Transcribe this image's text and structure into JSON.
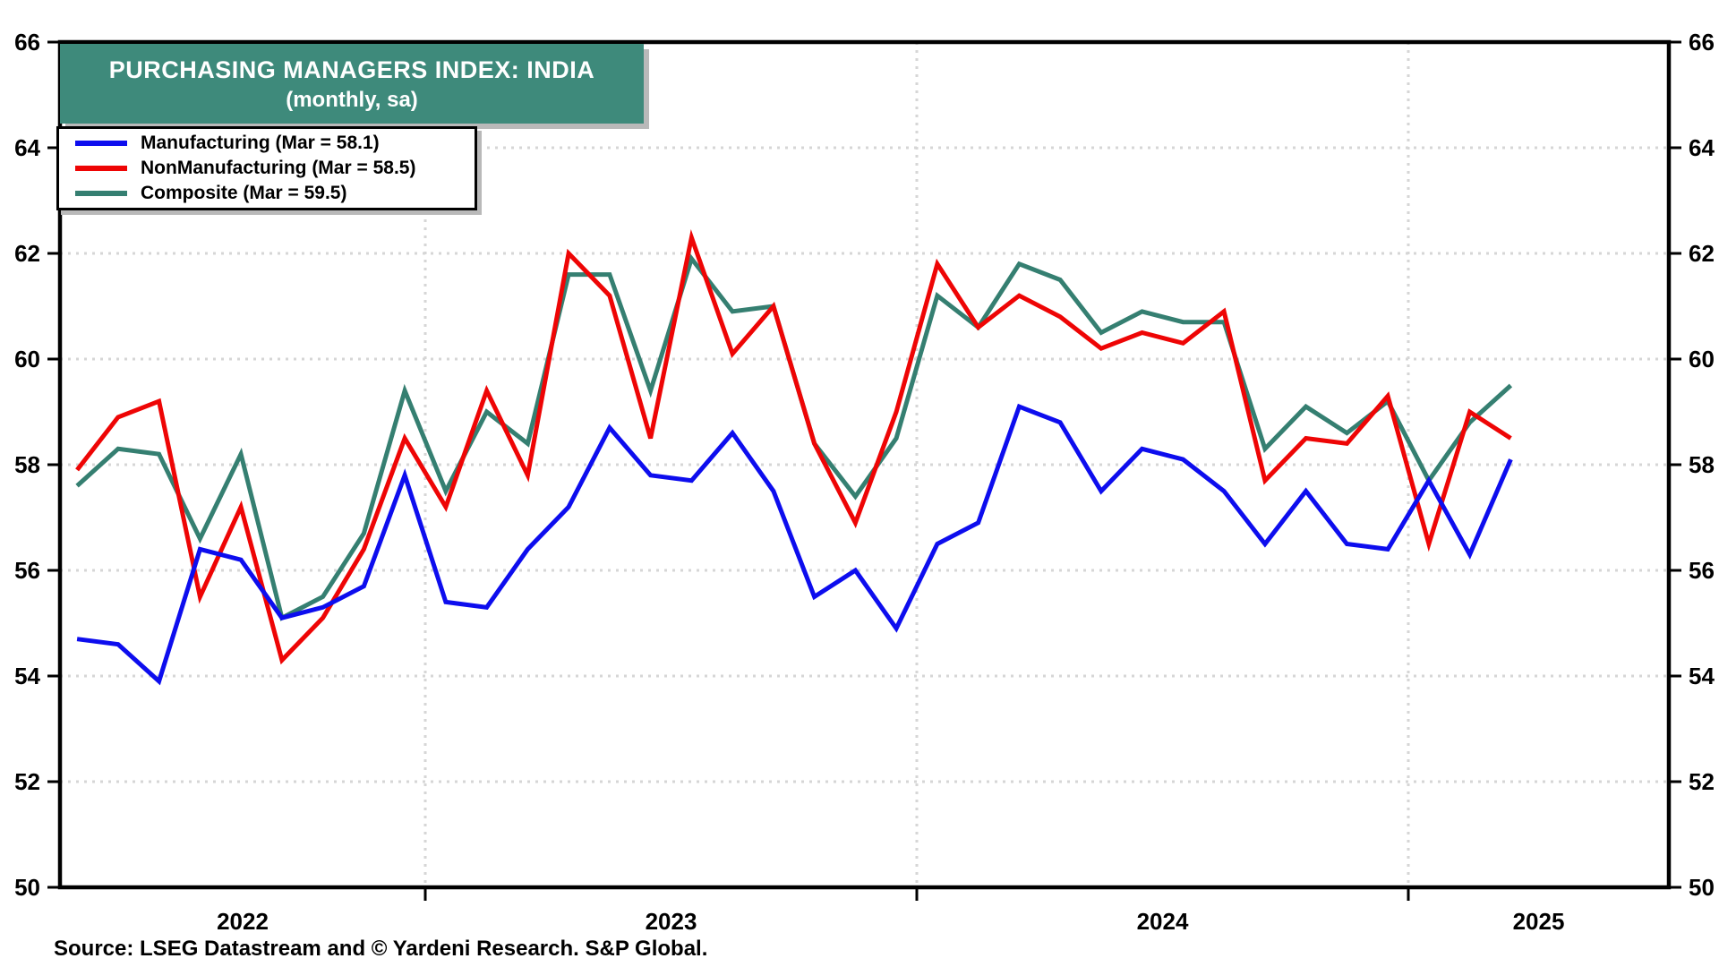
{
  "title": {
    "line1": "PURCHASING MANAGERS INDEX: INDIA",
    "line2": "(monthly, sa)"
  },
  "legend": {
    "items": [
      {
        "label": "Manufacturing (Mar = 58.1)"
      },
      {
        "label": "NonManufacturing (Mar = 58.5)"
      },
      {
        "label": "Composite (Mar = 59.5)"
      }
    ]
  },
  "source_note": "Source: LSEG Datastream and © Yardeni Research. S&P Global.",
  "colors": {
    "banner_background": "#3e8a7b",
    "manufacturing": "#0d0dee",
    "nonmanufacturing": "#ee0505",
    "composite": "#357f71",
    "gridline": "#d6d6d6",
    "axis": "#000000",
    "shadow": "#b9b9b9"
  },
  "chart_data": {
    "type": "line",
    "title": "PURCHASING MANAGERS INDEX: INDIA",
    "subtitle": "(monthly, sa)",
    "x": [
      "Apr 2022",
      "May 2022",
      "Jun 2022",
      "Jul 2022",
      "Aug 2022",
      "Sep 2022",
      "Oct 2022",
      "Nov 2022",
      "Dec 2022",
      "Jan 2023",
      "Feb 2023",
      "Mar 2023",
      "Apr 2023",
      "May 2023",
      "Jun 2023",
      "Jul 2023",
      "Aug 2023",
      "Sep 2023",
      "Oct 2023",
      "Nov 2023",
      "Dec 2023",
      "Jan 2024",
      "Feb 2024",
      "Mar 2024",
      "Apr 2024",
      "May 2024",
      "Jun 2024",
      "Jul 2024",
      "Aug 2024",
      "Sep 2024",
      "Oct 2024",
      "Nov 2024",
      "Dec 2024",
      "Jan 2025",
      "Feb 2025",
      "Mar 2025"
    ],
    "series": [
      {
        "name": "Manufacturing (Mar = 58.1)",
        "color": "#0d0dee",
        "values": [
          54.7,
          54.6,
          53.9,
          56.4,
          56.2,
          55.1,
          55.3,
          55.7,
          57.8,
          55.4,
          55.3,
          56.4,
          57.2,
          58.7,
          57.8,
          57.7,
          58.6,
          57.5,
          55.5,
          56.0,
          54.9,
          56.5,
          56.9,
          59.1,
          58.8,
          57.5,
          58.3,
          58.1,
          57.5,
          56.5,
          57.5,
          56.5,
          56.4,
          57.7,
          56.3,
          58.1
        ]
      },
      {
        "name": "NonManufacturing (Mar = 58.5)",
        "color": "#ee0505",
        "values": [
          57.9,
          58.9,
          59.2,
          55.5,
          57.2,
          54.3,
          55.1,
          56.4,
          58.5,
          57.2,
          59.4,
          57.8,
          62.0,
          61.2,
          58.5,
          62.3,
          60.1,
          61.0,
          58.4,
          56.9,
          59.0,
          61.8,
          60.6,
          61.2,
          60.8,
          60.2,
          60.5,
          60.3,
          60.9,
          57.7,
          58.5,
          58.4,
          59.3,
          56.5,
          59.0,
          58.5
        ]
      },
      {
        "name": "Composite (Mar = 59.5)",
        "color": "#357f71",
        "values": [
          57.6,
          58.3,
          58.2,
          56.6,
          58.2,
          55.1,
          55.5,
          56.7,
          59.4,
          57.5,
          59.0,
          58.4,
          61.6,
          61.6,
          59.4,
          61.9,
          60.9,
          61.0,
          58.4,
          57.4,
          58.5,
          61.2,
          60.6,
          61.8,
          61.5,
          60.5,
          60.9,
          60.7,
          60.7,
          58.3,
          59.1,
          58.6,
          59.2,
          57.7,
          58.8,
          59.5
        ]
      }
    ],
    "ylim": [
      50,
      66
    ],
    "y_ticks": [
      50,
      52,
      54,
      56,
      58,
      60,
      62,
      64,
      66
    ],
    "y_ticks_on_both_sides": true,
    "year_labels": [
      "2022",
      "2023",
      "2024",
      "2025"
    ],
    "year_boundary_gridlines": [
      "Jan 2023",
      "Jan 2024",
      "Jan 2025"
    ],
    "grid_style": "dotted",
    "legend_position": "top-left"
  }
}
